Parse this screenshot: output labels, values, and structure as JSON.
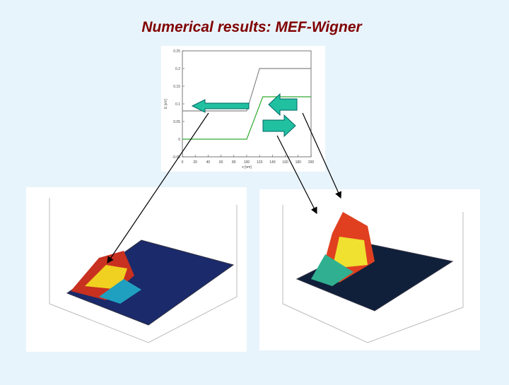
{
  "header": {
    "title": "Numerical results: MEF-Wigner"
  },
  "chart_data": {
    "type": "line",
    "xlabel": "x [nm]",
    "ylabel": "E [eV]",
    "xlim": [
      0,
      200
    ],
    "xticks": [
      0,
      20,
      40,
      60,
      80,
      100,
      120,
      140,
      160,
      180,
      200
    ],
    "ylim": [
      -0.05,
      0.25
    ],
    "yticks": [
      -0.05,
      0,
      0.05,
      0.1,
      0.15,
      0.2,
      0.25
    ],
    "series": [
      {
        "color": "#888888",
        "x": [
          0,
          100,
          120,
          200
        ],
        "values": [
          0.08,
          0.08,
          0.2,
          0.2
        ]
      },
      {
        "color": "#33aa33",
        "x": [
          0,
          100,
          125,
          200
        ],
        "values": [
          0,
          0,
          0.12,
          0.12
        ]
      }
    ]
  }
}
